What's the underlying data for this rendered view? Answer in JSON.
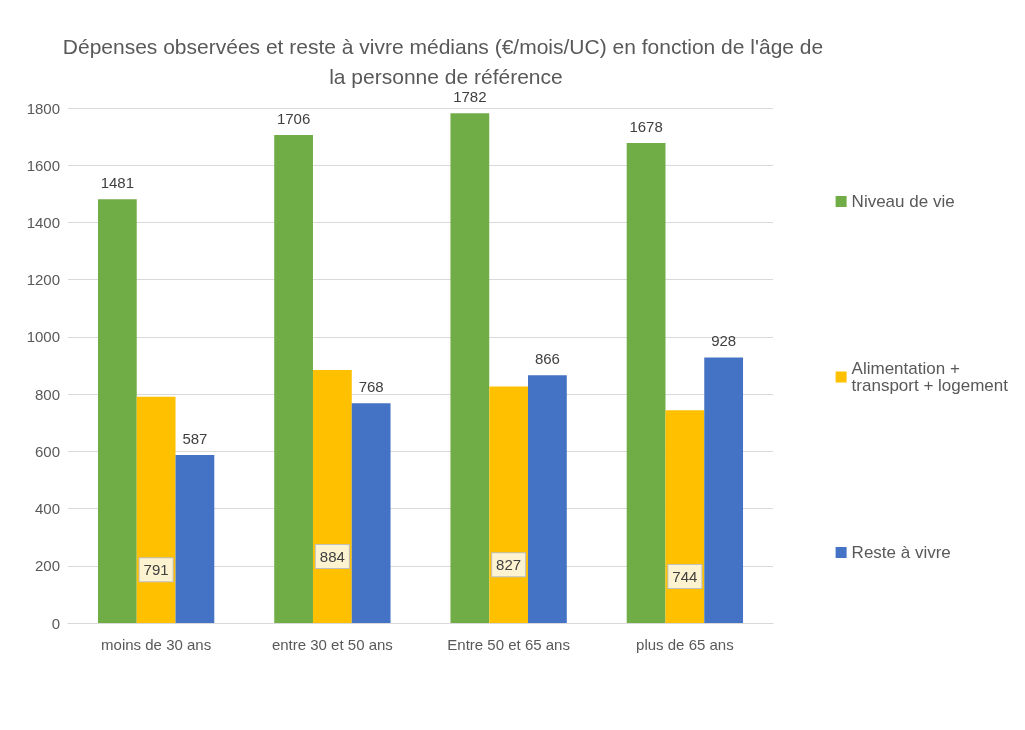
{
  "chart_data": {
    "type": "bar",
    "title": "Dépenses observées et reste à vivre médians (€/mois/UC) en fonction de l'âge de la personne de référence",
    "categories": [
      "moins de 30 ans",
      "entre 30 et 50 ans",
      "Entre 50 et 65 ans",
      "plus de 65 ans"
    ],
    "series": [
      {
        "name": "Niveau de vie",
        "color": "#70ad47",
        "values": [
          1481,
          1706,
          1782,
          1678
        ]
      },
      {
        "name": "Alimentation + transport + logement",
        "color": "#ffc000",
        "values": [
          791,
          884,
          827,
          744
        ]
      },
      {
        "name": "Reste à vivre",
        "color": "#4472c4",
        "values": [
          587,
          768,
          866,
          928
        ]
      }
    ],
    "ylim": [
      0,
      1800
    ],
    "yticks": [
      0,
      200,
      400,
      600,
      800,
      1000,
      1200,
      1400,
      1600,
      1800
    ],
    "grid": "y",
    "legend": "right",
    "data_labels": true
  }
}
